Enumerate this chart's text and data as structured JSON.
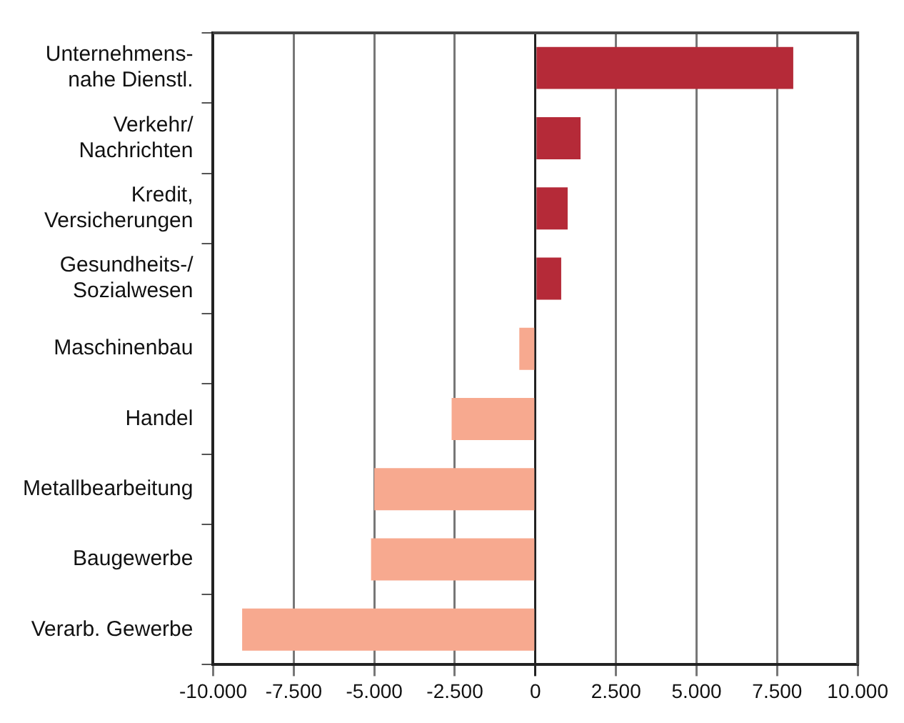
{
  "chart_data": {
    "type": "bar",
    "orientation": "horizontal",
    "categories": [
      "Unternehmens-\nnahe Dienstl.",
      "Verkehr/\nNachrichten",
      "Kredit,\nVersicherungen",
      "Gesundheits-/\nSozialwesen",
      "Maschinenbau",
      "Handel",
      "Metallbearbeitung",
      "Baugewerbe",
      "Verarb. Gewerbe"
    ],
    "values": [
      8000,
      1400,
      1000,
      800,
      -500,
      -2600,
      -5000,
      -5100,
      -9100
    ],
    "colors": [
      "#b52a38",
      "#b52a38",
      "#b52a38",
      "#b52a38",
      "#f7a98f",
      "#f7a98f",
      "#f7a98f",
      "#f7a98f",
      "#f7a98f"
    ],
    "xlim": [
      -10000,
      10000
    ],
    "xticks": [
      {
        "value": -10000,
        "label": "-10.000"
      },
      {
        "value": -7500,
        "label": "-7.500"
      },
      {
        "value": -5000,
        "label": "-5.000"
      },
      {
        "value": -2500,
        "label": "-2.500"
      },
      0,
      {
        "value": 2500,
        "label": "2.500"
      },
      {
        "value": 5000,
        "label": "5.000"
      },
      {
        "value": 7500,
        "label": "7.500"
      },
      {
        "value": 10000,
        "label": "10.000"
      }
    ],
    "grid": "x",
    "legend": false
  }
}
